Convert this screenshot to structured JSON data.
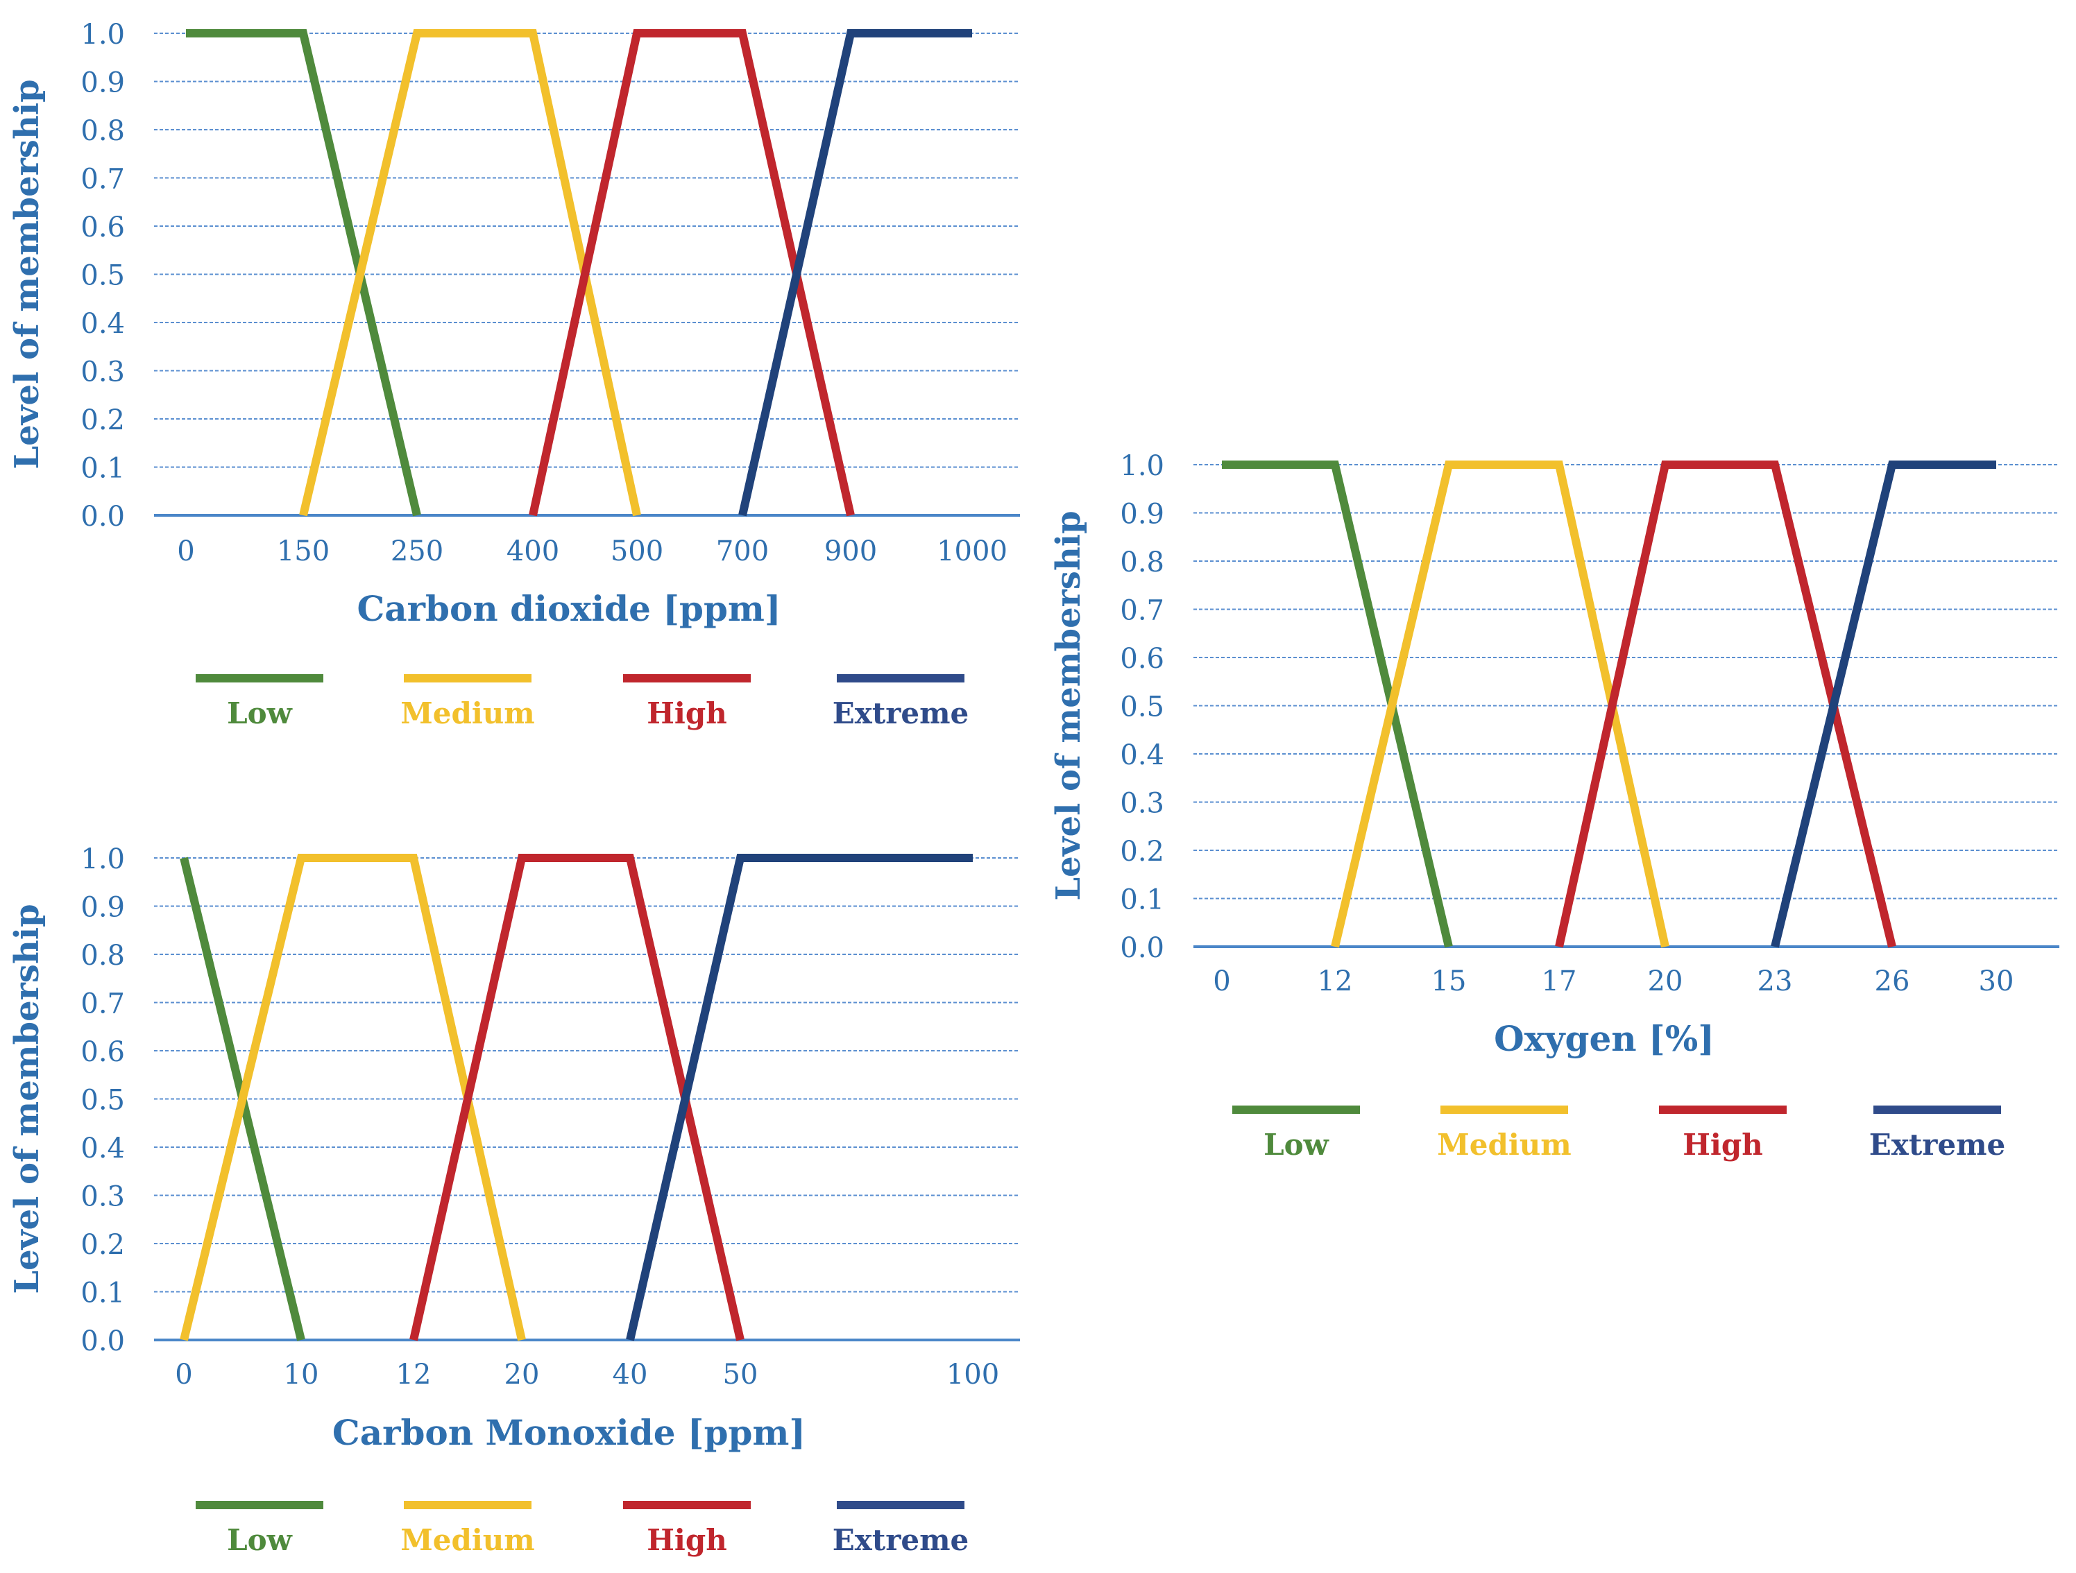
{
  "colors": {
    "axis_text": "#2f6fae",
    "grid": "#5b8fd0",
    "axis_line": "#4a86c8",
    "low": "#4f8a3c",
    "medium": "#f2c02c",
    "high": "#c0262d",
    "extreme": "#20427a",
    "legend_low": "#4f8a3c",
    "legend_medium": "#f2c02c",
    "legend_high": "#c0262d",
    "legend_extreme": "#2f4b8a"
  },
  "chart_data": [
    {
      "id": "co2",
      "type": "line",
      "title": "",
      "xlabel": "Carbon dioxide [ppm]",
      "ylabel": "Level of membership",
      "x": [
        "0",
        "150",
        "250",
        "400",
        "500",
        "700",
        "900",
        "1000"
      ],
      "y_ticks": [
        "0.0",
        "0.1",
        "0.2",
        "0.3",
        "0.4",
        "0.5",
        "0.6",
        "0.7",
        "0.8",
        "0.9",
        "1.0"
      ],
      "ylim": [
        0,
        1
      ],
      "grid": true,
      "legend_position": "bottom",
      "series": [
        {
          "name": "Low",
          "color_key": "low",
          "points": [
            [
              0,
              1.0
            ],
            [
              1,
              1.0
            ],
            [
              2,
              0.0
            ]
          ]
        },
        {
          "name": "Medium",
          "color_key": "medium",
          "points": [
            [
              1,
              0.0
            ],
            [
              2,
              1.0
            ],
            [
              3,
              1.0
            ],
            [
              4,
              0.0
            ]
          ]
        },
        {
          "name": "High",
          "color_key": "high",
          "points": [
            [
              3,
              0.0
            ],
            [
              4,
              1.0
            ],
            [
              5,
              1.0
            ],
            [
              6,
              0.0
            ]
          ]
        },
        {
          "name": "Extreme",
          "color_key": "extreme",
          "points": [
            [
              5,
              0.0
            ],
            [
              6,
              1.0
            ],
            [
              7,
              1.0
            ]
          ]
        }
      ],
      "legend": [
        "Low",
        "Medium",
        "High",
        "Extreme"
      ]
    },
    {
      "id": "co",
      "type": "line",
      "title": "",
      "xlabel": "Carbon Monoxide [ppm]",
      "ylabel": "Level of membership",
      "x": [
        "0",
        "10",
        "12",
        "20",
        "40",
        "50",
        "",
        "100"
      ],
      "y_ticks": [
        "0.0",
        "0.1",
        "0.2",
        "0.3",
        "0.4",
        "0.5",
        "0.6",
        "0.7",
        "0.8",
        "0.9",
        "1.0"
      ],
      "ylim": [
        0,
        1
      ],
      "grid": true,
      "legend_position": "bottom",
      "series": [
        {
          "name": "Low",
          "color_key": "low",
          "points": [
            [
              0,
              1.0
            ],
            [
              1,
              0.0
            ]
          ]
        },
        {
          "name": "Medium",
          "color_key": "medium",
          "points": [
            [
              0,
              0.0
            ],
            [
              1,
              1.0
            ],
            [
              2,
              1.0
            ],
            [
              3,
              0.0
            ]
          ]
        },
        {
          "name": "High",
          "color_key": "high",
          "points": [
            [
              2,
              0.0
            ],
            [
              3,
              1.0
            ],
            [
              4,
              1.0
            ],
            [
              5,
              0.0
            ]
          ]
        },
        {
          "name": "Extreme",
          "color_key": "extreme",
          "points": [
            [
              4,
              0.0
            ],
            [
              5,
              1.0
            ],
            [
              7,
              1.0
            ]
          ]
        }
      ],
      "legend": [
        "Low",
        "Medium",
        "High",
        "Extreme"
      ]
    },
    {
      "id": "o2",
      "type": "line",
      "title": "",
      "xlabel": "Oxygen [%]",
      "ylabel": "Level of membership",
      "x": [
        "0",
        "12",
        "15",
        "17",
        "20",
        "23",
        "26",
        "30"
      ],
      "y_ticks": [
        "0.0",
        "0.1",
        "0.2",
        "0.3",
        "0.4",
        "0.5",
        "0.6",
        "0.7",
        "0.8",
        "0.9",
        "1.0"
      ],
      "ylim": [
        0,
        1
      ],
      "grid": true,
      "legend_position": "bottom",
      "series": [
        {
          "name": "Low",
          "color_key": "low",
          "points": [
            [
              0,
              1.0
            ],
            [
              1,
              1.0
            ],
            [
              2,
              0.0
            ]
          ]
        },
        {
          "name": "Medium",
          "color_key": "medium",
          "points": [
            [
              1,
              0.0
            ],
            [
              2,
              1.0
            ],
            [
              3,
              1.0
            ],
            [
              4,
              0.0
            ]
          ]
        },
        {
          "name": "High",
          "color_key": "high",
          "points": [
            [
              3,
              0.0
            ],
            [
              4,
              1.0
            ],
            [
              5,
              1.0
            ],
            [
              6,
              0.0
            ]
          ]
        },
        {
          "name": "Extreme",
          "color_key": "extreme",
          "points": [
            [
              5,
              0.0
            ],
            [
              6,
              1.0
            ],
            [
              7,
              1.0
            ]
          ]
        }
      ],
      "legend": [
        "Low",
        "Medium",
        "High",
        "Extreme"
      ]
    }
  ]
}
